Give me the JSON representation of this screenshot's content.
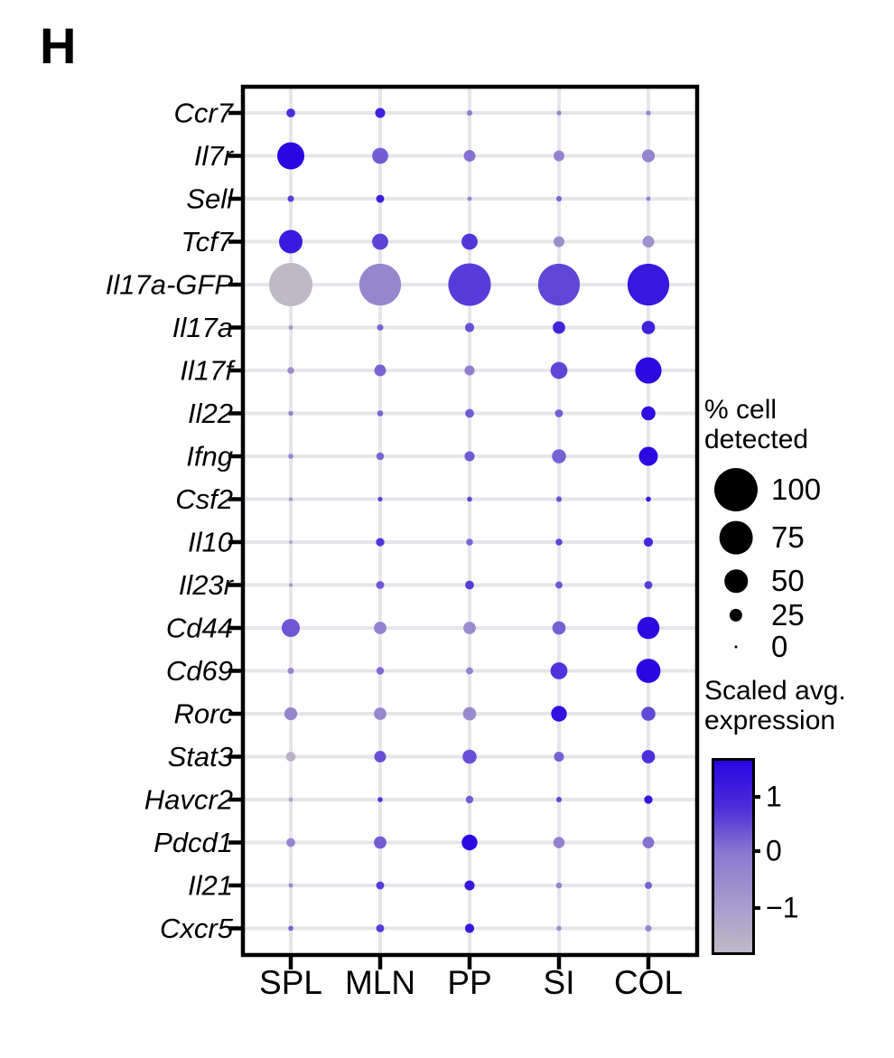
{
  "panel_label": "H",
  "chart_data": {
    "type": "scatter",
    "subtype": "dot-plot",
    "title": "",
    "xlabel": "",
    "ylabel": "",
    "columns": [
      "SPL",
      "MLN",
      "PP",
      "SI",
      "COL"
    ],
    "rows": [
      "Ccr7",
      "Il7r",
      "Sell",
      "Tcf7",
      "Il17a-GFP",
      "Il17a",
      "Il17f",
      "Il22",
      "Ifng",
      "Csf2",
      "Il10",
      "Il23r",
      "Cd44",
      "Cd69",
      "Rorc",
      "Stat3",
      "Havcr2",
      "Pdcd1",
      "Il21",
      "Cxcr5"
    ],
    "series": [
      {
        "gene": "Ccr7",
        "pct_detected": [
          15,
          18,
          7,
          5,
          5
        ],
        "scaled_expression": [
          1.1,
          1.3,
          -0.2,
          -0.4,
          -0.4
        ]
      },
      {
        "gene": "Il7r",
        "pct_detected": [
          60,
          33,
          22,
          20,
          25
        ],
        "scaled_expression": [
          1.7,
          0.4,
          0.1,
          -0.3,
          -0.35
        ]
      },
      {
        "gene": "Sell",
        "pct_detected": [
          9,
          13,
          4,
          7,
          4
        ],
        "scaled_expression": [
          0.9,
          1.4,
          -0.3,
          0.3,
          -0.3
        ]
      },
      {
        "gene": "Tcf7",
        "pct_detected": [
          51,
          33,
          33,
          20,
          22
        ],
        "scaled_expression": [
          1.4,
          0.8,
          1.0,
          -0.6,
          -0.7
        ]
      },
      {
        "gene": "Il17a-GFP",
        "pct_detected": [
          100,
          96,
          98,
          96,
          96
        ],
        "scaled_expression": [
          -1.8,
          -0.4,
          0.9,
          0.75,
          1.45
        ]
      },
      {
        "gene": "Il17a",
        "pct_detected": [
          4,
          9,
          16,
          24,
          26
        ],
        "scaled_expression": [
          -0.85,
          0.3,
          0.6,
          1.25,
          1.3
        ]
      },
      {
        "gene": "Il17f",
        "pct_detected": [
          10,
          22,
          18,
          35,
          58
        ],
        "scaled_expression": [
          -0.55,
          0.3,
          -0.2,
          0.75,
          1.65
        ]
      },
      {
        "gene": "Il22",
        "pct_detected": [
          5,
          8,
          15,
          13,
          28
        ],
        "scaled_expression": [
          -0.3,
          0.3,
          0.45,
          0.4,
          1.6
        ]
      },
      {
        "gene": "Ifng",
        "pct_detected": [
          6,
          12,
          18,
          28,
          40
        ],
        "scaled_expression": [
          -0.45,
          0.3,
          0.45,
          0.35,
          1.65
        ]
      },
      {
        "gene": "Csf2",
        "pct_detected": [
          3,
          5,
          6,
          7,
          6
        ],
        "scaled_expression": [
          -0.9,
          0.8,
          0.7,
          0.6,
          1.4
        ]
      },
      {
        "gene": "Il10",
        "pct_detected": [
          2,
          14,
          10,
          10,
          16
        ],
        "scaled_expression": [
          -1.3,
          1.0,
          0.3,
          0.8,
          1.2
        ]
      },
      {
        "gene": "Il23r",
        "pct_detected": [
          3,
          13,
          15,
          11,
          13
        ],
        "scaled_expression": [
          -1.0,
          0.5,
          0.9,
          0.5,
          0.9
        ]
      },
      {
        "gene": "Cd44",
        "pct_detected": [
          38,
          24,
          24,
          26,
          48
        ],
        "scaled_expression": [
          0.5,
          -0.3,
          -0.55,
          0.35,
          1.65
        ]
      },
      {
        "gene": "Cd69",
        "pct_detected": [
          9,
          12,
          11,
          35,
          53
        ],
        "scaled_expression": [
          -0.4,
          0.2,
          -0.3,
          1.05,
          1.7
        ]
      },
      {
        "gene": "Rorc",
        "pct_detected": [
          25,
          24,
          26,
          32,
          28
        ],
        "scaled_expression": [
          -0.4,
          -0.45,
          -0.5,
          1.55,
          0.7
        ]
      },
      {
        "gene": "Stat3",
        "pct_detected": [
          17,
          22,
          28,
          18,
          26
        ],
        "scaled_expression": [
          -1.6,
          0.6,
          0.6,
          0.35,
          1.1
        ]
      },
      {
        "gene": "Havcr2",
        "pct_detected": [
          4,
          6,
          12,
          7,
          14
        ],
        "scaled_expression": [
          -1.2,
          1.0,
          0.4,
          0.7,
          1.5
        ]
      },
      {
        "gene": "Pdcd1",
        "pct_detected": [
          15,
          24,
          32,
          21,
          22
        ],
        "scaled_expression": [
          -0.35,
          0.4,
          1.65,
          -0.25,
          0.1
        ]
      },
      {
        "gene": "Il21",
        "pct_detected": [
          4,
          13,
          18,
          8,
          11
        ],
        "scaled_expression": [
          -0.45,
          0.9,
          1.45,
          -0.4,
          0.35
        ]
      },
      {
        "gene": "Cxcr5",
        "pct_detected": [
          6,
          13,
          16,
          6,
          9
        ],
        "scaled_expression": [
          0.3,
          0.9,
          1.45,
          -0.7,
          -0.35
        ]
      }
    ],
    "size_encoding": {
      "label": "% cell detected",
      "legend_values": [
        100,
        75,
        50,
        25,
        0
      ]
    },
    "color_encoding": {
      "label": "Scaled avg. expression",
      "axis_ticks": [
        1,
        0,
        -1
      ],
      "value_range": [
        -1.8,
        1.7
      ],
      "color_max": "#2a06e2",
      "color_mid": "#8a78d0",
      "color_min": "#beb9c6"
    },
    "grid": true,
    "legend_position": "right"
  },
  "legend_size": {
    "title_line1": "% cell",
    "title_line2": "detected",
    "items": [
      "100",
      "75",
      "50",
      "25",
      "0"
    ]
  },
  "legend_color": {
    "title_line1": "Scaled avg.",
    "title_line2": "expression",
    "tick_labels": [
      "1",
      "0",
      "−1"
    ]
  }
}
